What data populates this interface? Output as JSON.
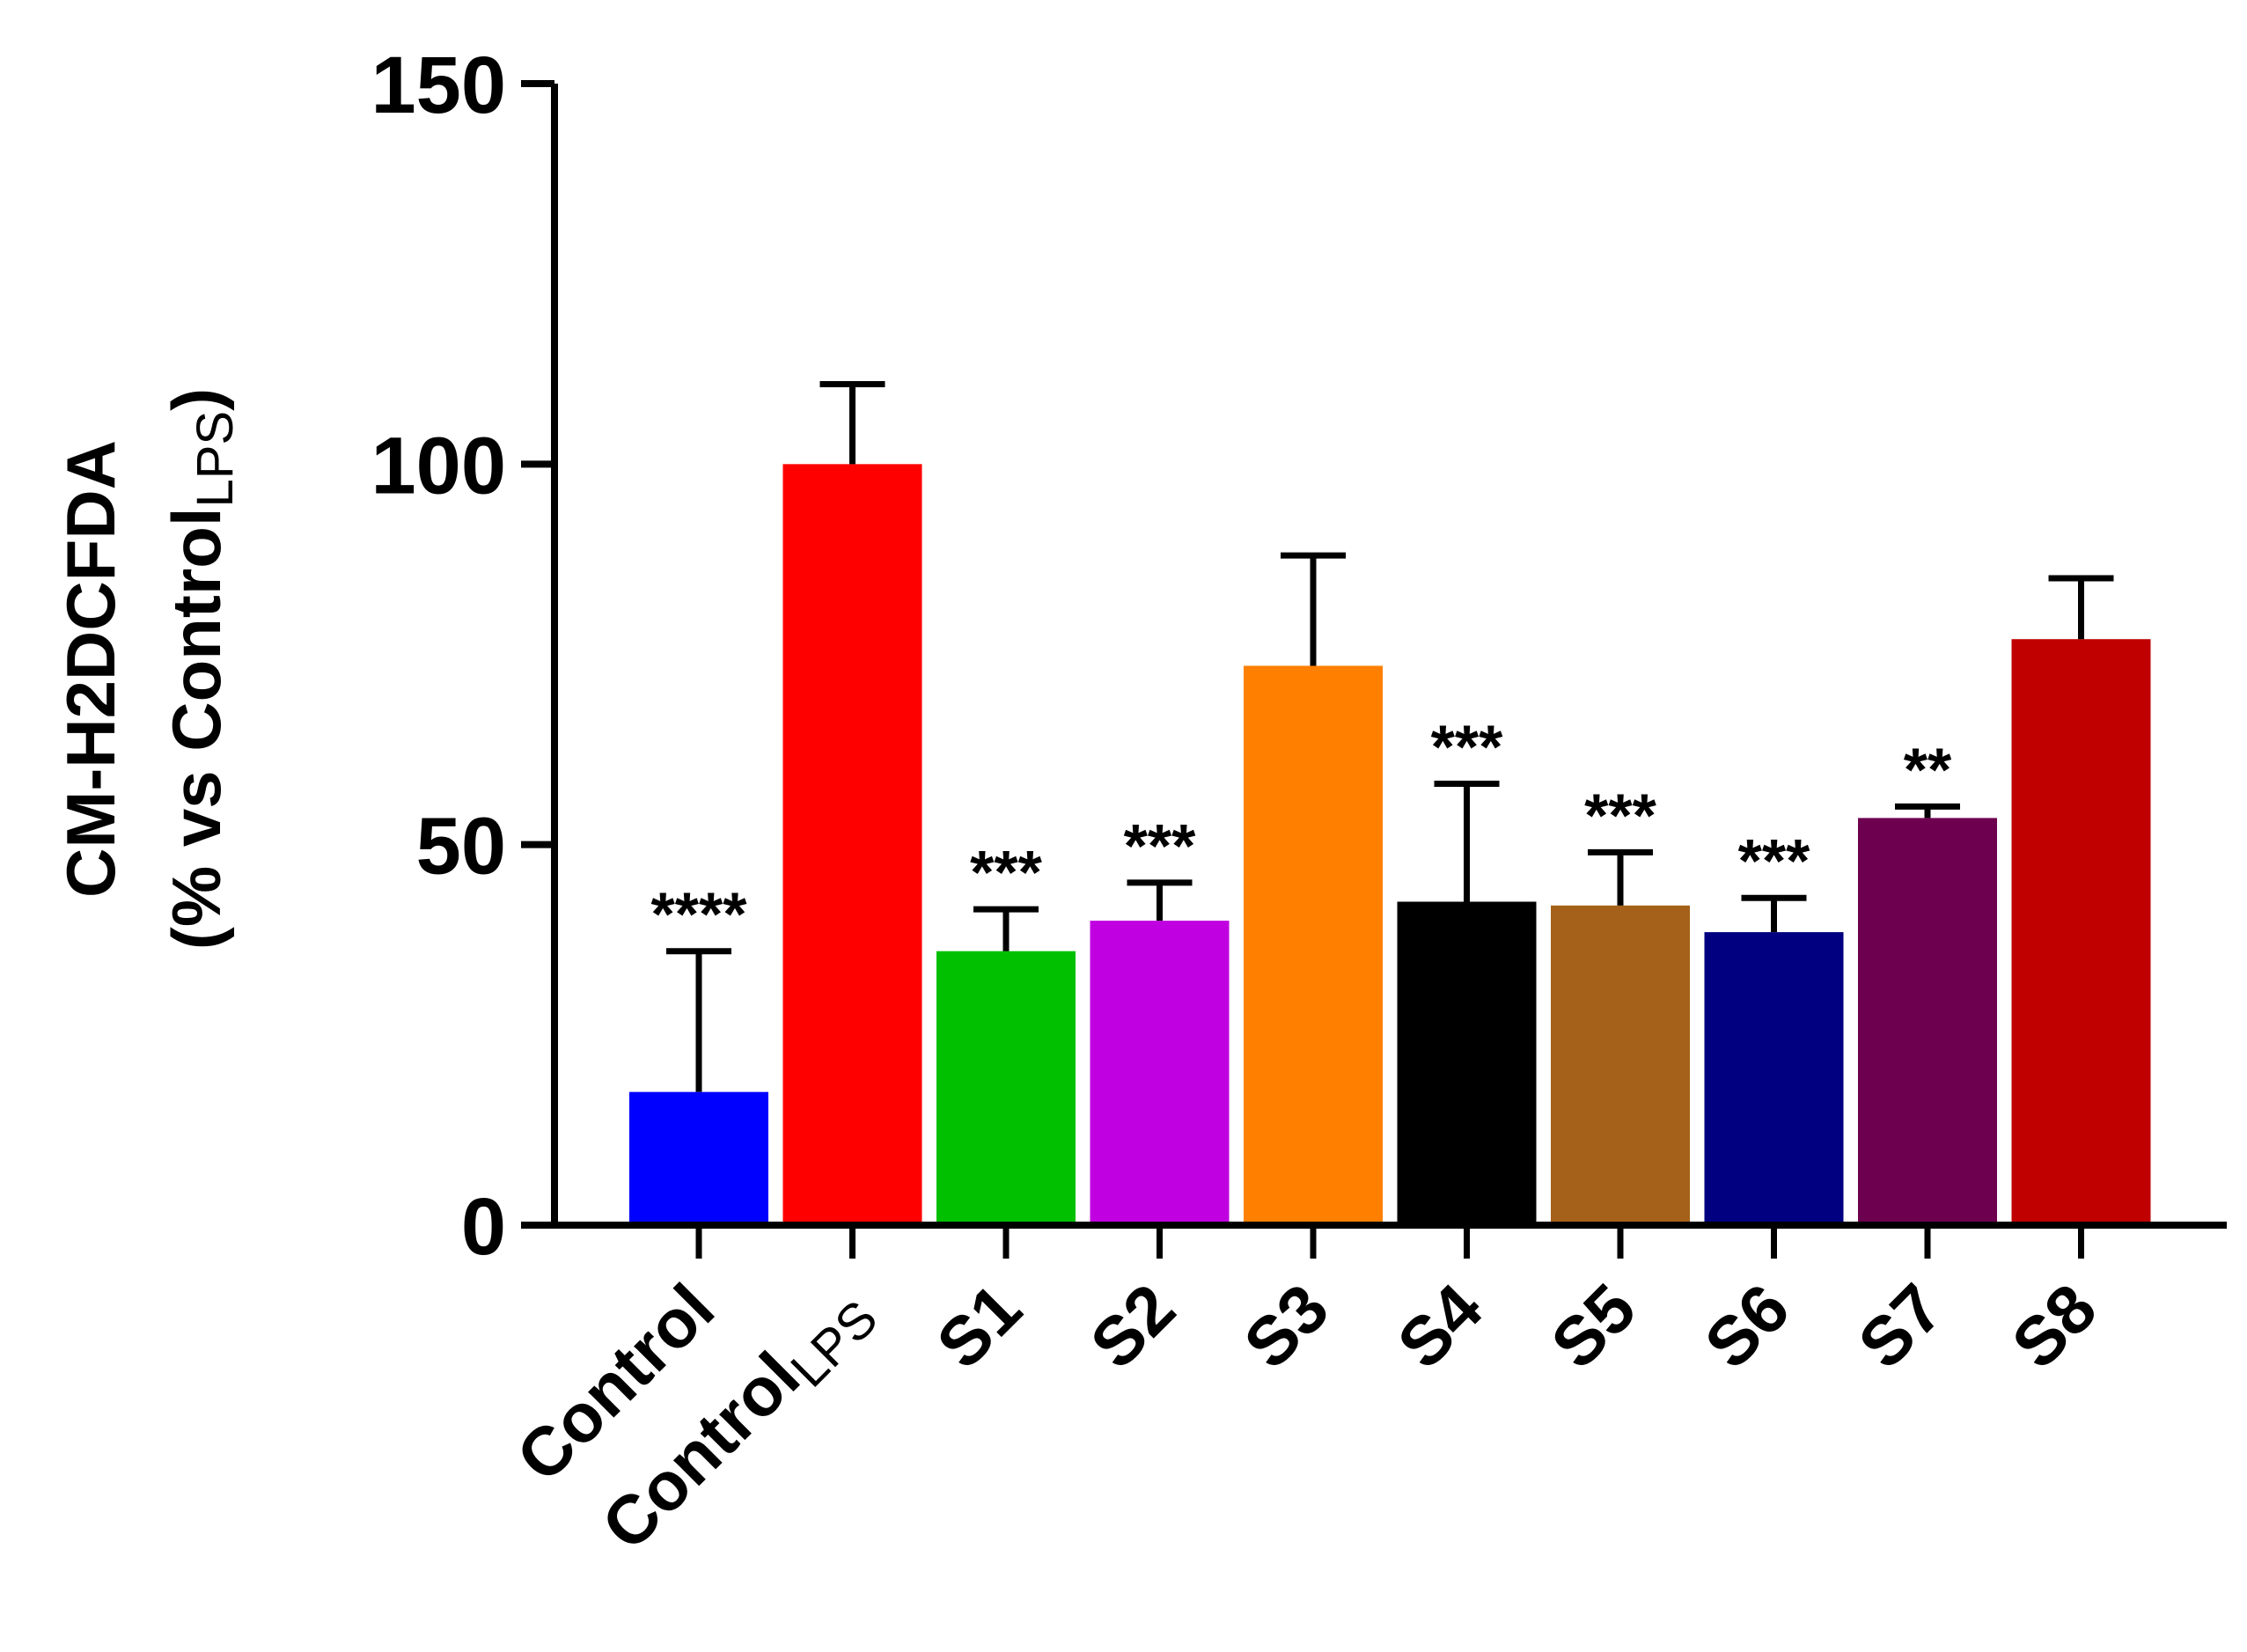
{
  "chart_data": {
    "type": "bar",
    "ylabel_line1": "CM-H2DCFDA",
    "ylabel_line2": "(% vs Control",
    "ylabel_line2_sub": "LPS",
    "ylabel_line2_end": ")",
    "ylim": [
      0,
      150
    ],
    "yticks": [
      0,
      50,
      100,
      150
    ],
    "categories": [
      {
        "label": "Control",
        "sub": ""
      },
      {
        "label": "Control",
        "sub": "LPS"
      },
      {
        "label": "S1",
        "sub": ""
      },
      {
        "label": "S2",
        "sub": ""
      },
      {
        "label": "S3",
        "sub": ""
      },
      {
        "label": "S4",
        "sub": ""
      },
      {
        "label": "S5",
        "sub": ""
      },
      {
        "label": "S6",
        "sub": ""
      },
      {
        "label": "S7",
        "sub": ""
      },
      {
        "label": "S8",
        "sub": ""
      }
    ],
    "values": [
      17.5,
      100,
      36,
      40,
      73.5,
      42.5,
      42,
      38.5,
      53.5,
      77
    ],
    "error_upper": [
      36,
      110.5,
      41.5,
      45,
      88,
      58,
      49,
      43,
      55,
      85
    ],
    "significance": [
      "****",
      "",
      "***",
      "***",
      "",
      "***",
      "***",
      "***",
      "**",
      ""
    ],
    "colors": [
      "#0000ff",
      "#ff0000",
      "#00c000",
      "#c000e0",
      "#ff8000",
      "#000000",
      "#a5611a",
      "#000080",
      "#6e0050",
      "#c00000"
    ]
  }
}
